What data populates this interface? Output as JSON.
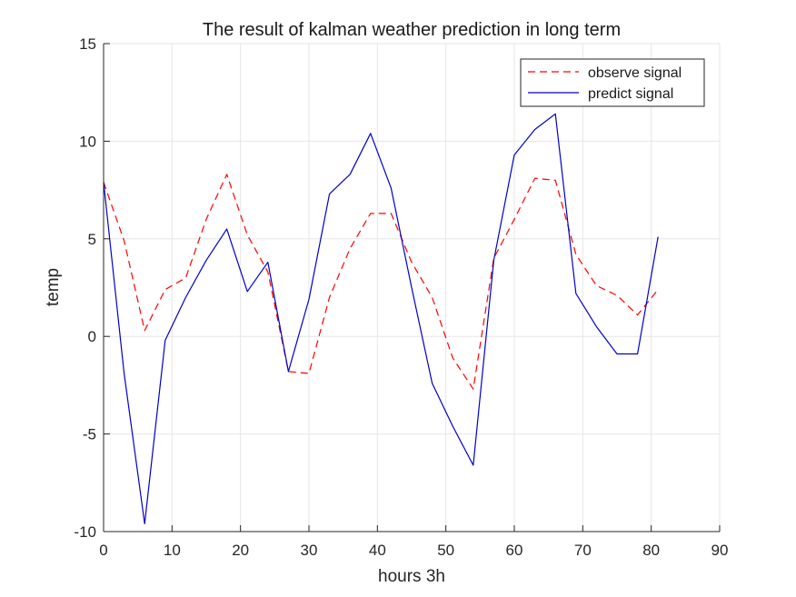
{
  "chart_data": {
    "type": "line",
    "title": "The result of kalman weather prediction in long term",
    "xlabel": "hours 3h",
    "ylabel": "temp",
    "xlim": [
      0,
      90
    ],
    "ylim": [
      -10,
      15
    ],
    "xticks": [
      0,
      10,
      20,
      30,
      40,
      50,
      60,
      70,
      80,
      90
    ],
    "yticks": [
      -10,
      -5,
      0,
      5,
      10,
      15
    ],
    "grid": true,
    "legend_position": "top-right",
    "series": [
      {
        "name": "observe signal",
        "color": "#ff0000",
        "style": "dashed",
        "x": [
          0,
          3,
          6,
          9,
          12,
          15,
          18,
          21,
          24,
          27,
          30,
          33,
          36,
          39,
          42,
          45,
          48,
          51,
          54,
          57,
          60,
          63,
          66,
          69,
          72,
          75,
          78,
          81
        ],
        "y": [
          7.9,
          4.9,
          0.3,
          2.4,
          3.0,
          6.0,
          8.3,
          5.2,
          3.3,
          -1.8,
          -1.9,
          2.0,
          4.5,
          6.3,
          6.3,
          3.8,
          2.0,
          -1.1,
          -2.7,
          4.0,
          6.0,
          8.1,
          8.0,
          4.2,
          2.6,
          2.1,
          1.1,
          2.4
        ]
      },
      {
        "name": "predict signal",
        "color": "#0000cc",
        "style": "solid",
        "x": [
          0,
          3,
          6,
          9,
          12,
          15,
          18,
          21,
          24,
          27,
          30,
          33,
          36,
          39,
          42,
          45,
          48,
          51,
          54,
          57,
          60,
          63,
          66,
          69,
          72,
          75,
          78,
          81
        ],
        "y": [
          7.9,
          -1.9,
          -9.6,
          -0.2,
          2.0,
          3.9,
          5.5,
          2.3,
          3.8,
          -1.8,
          1.9,
          7.3,
          8.3,
          10.4,
          7.6,
          2.5,
          -2.4,
          -4.6,
          -6.6,
          3.9,
          9.3,
          10.6,
          11.4,
          2.2,
          0.5,
          -0.9,
          -0.9,
          5.1
        ]
      }
    ]
  }
}
